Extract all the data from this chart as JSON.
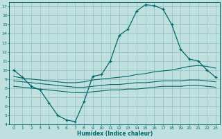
{
  "xlabel": "Humidex (Indice chaleur)",
  "bg_color": "#c0e0e0",
  "grid_color": "#90c0c0",
  "line_color": "#006868",
  "xlim": [
    -0.5,
    23.5
  ],
  "ylim": [
    4,
    17.5
  ],
  "xticks": [
    0,
    1,
    2,
    3,
    4,
    5,
    6,
    7,
    8,
    9,
    10,
    11,
    12,
    13,
    14,
    15,
    16,
    17,
    18,
    19,
    20,
    21,
    22,
    23
  ],
  "yticks": [
    4,
    5,
    6,
    7,
    8,
    9,
    10,
    11,
    12,
    13,
    14,
    15,
    16,
    17
  ],
  "line1_x": [
    0,
    1,
    2,
    3,
    4,
    5,
    6,
    7,
    8,
    9,
    10,
    11,
    12,
    13,
    14,
    15,
    16,
    17,
    18,
    19,
    20,
    21,
    22,
    23
  ],
  "line1_y": [
    10.0,
    9.2,
    8.2,
    7.8,
    6.4,
    5.0,
    4.5,
    4.3,
    6.5,
    9.3,
    9.5,
    11.0,
    13.8,
    14.5,
    16.5,
    17.2,
    17.1,
    16.7,
    15.0,
    12.3,
    11.2,
    11.0,
    10.0,
    9.2
  ],
  "line2_x": [
    0,
    1,
    2,
    3,
    4,
    5,
    6,
    7,
    8,
    9,
    10,
    11,
    12,
    13,
    14,
    15,
    16,
    17,
    18,
    19,
    20,
    21,
    22,
    23
  ],
  "line2_y": [
    9.3,
    9.1,
    9.0,
    8.9,
    8.8,
    8.7,
    8.6,
    8.6,
    8.7,
    8.9,
    9.0,
    9.1,
    9.2,
    9.3,
    9.5,
    9.6,
    9.8,
    9.9,
    10.0,
    10.2,
    10.4,
    10.5,
    10.4,
    10.2
  ],
  "line3_x": [
    0,
    1,
    2,
    3,
    4,
    5,
    6,
    7,
    8,
    9,
    10,
    11,
    12,
    13,
    14,
    15,
    16,
    17,
    18,
    19,
    20,
    21,
    22,
    23
  ],
  "line3_y": [
    8.8,
    8.7,
    8.6,
    8.5,
    8.4,
    8.3,
    8.2,
    8.1,
    8.1,
    8.2,
    8.3,
    8.4,
    8.4,
    8.5,
    8.6,
    8.6,
    8.7,
    8.8,
    8.8,
    8.8,
    8.9,
    8.9,
    8.8,
    8.7
  ],
  "line4_x": [
    0,
    1,
    2,
    3,
    4,
    5,
    6,
    7,
    8,
    9,
    10,
    11,
    12,
    13,
    14,
    15,
    16,
    17,
    18,
    19,
    20,
    21,
    22,
    23
  ],
  "line4_y": [
    8.2,
    8.1,
    8.0,
    7.9,
    7.8,
    7.7,
    7.6,
    7.5,
    7.5,
    7.6,
    7.7,
    7.8,
    7.8,
    7.9,
    7.9,
    8.0,
    8.1,
    8.2,
    8.2,
    8.2,
    8.3,
    8.3,
    8.2,
    8.1
  ]
}
